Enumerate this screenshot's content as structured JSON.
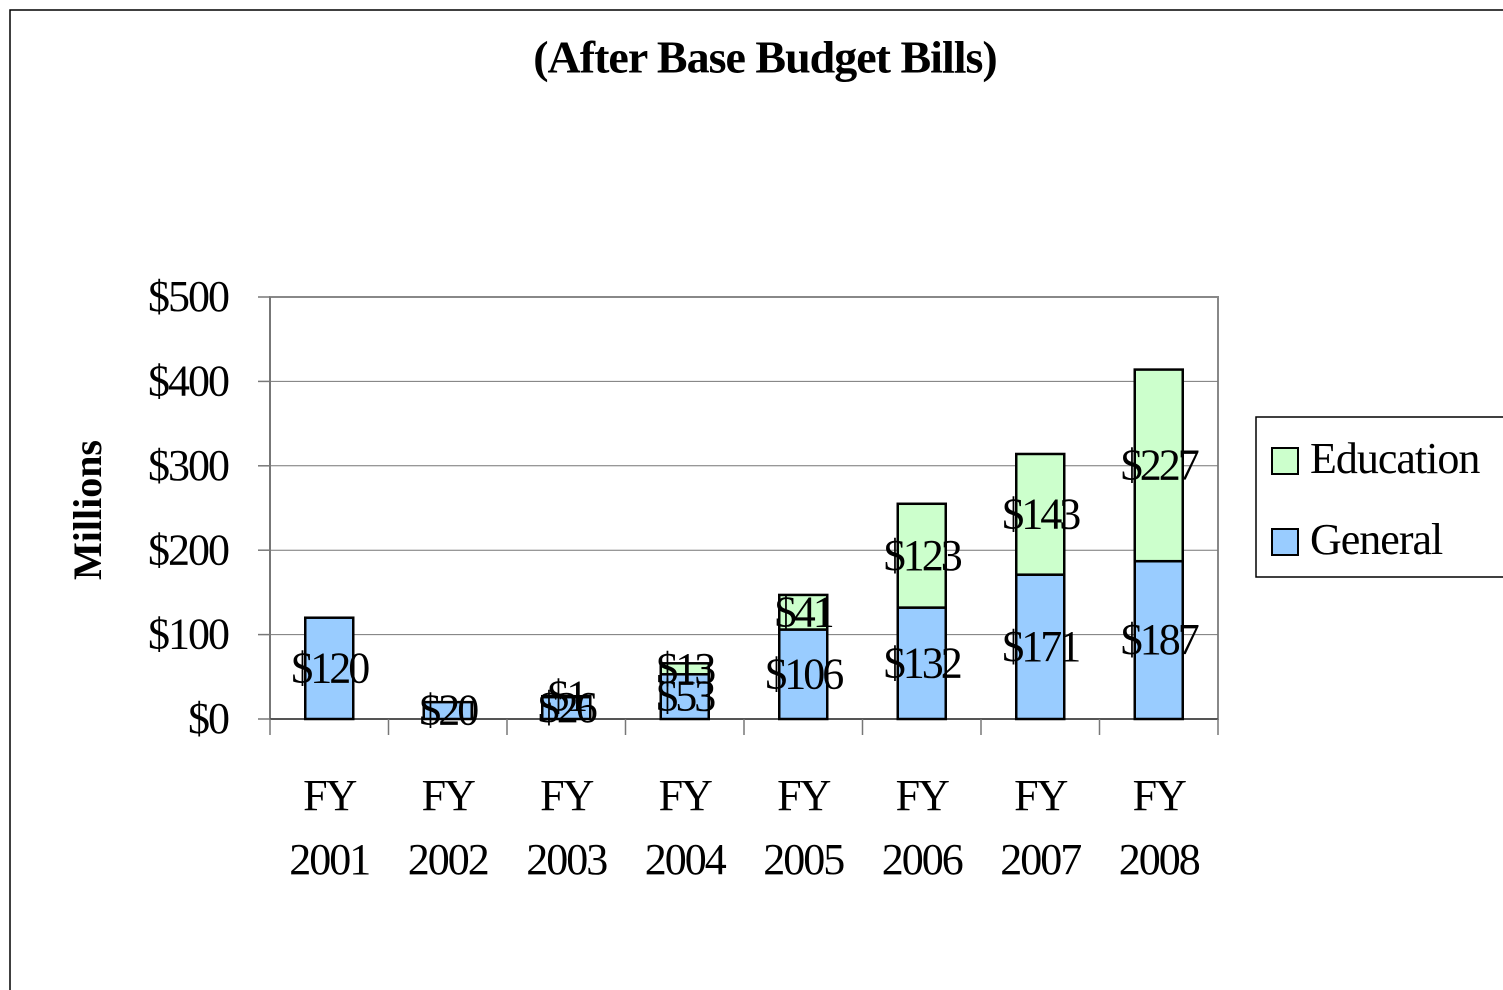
{
  "chart_data": {
    "type": "stacked_bar",
    "title": "(After Base Budget Bills)",
    "y_label": "Millions",
    "categories": [
      "FY 2001",
      "FY 2002",
      "FY 2003",
      "FY 2004",
      "FY 2005",
      "FY 2006",
      "FY 2007",
      "FY 2008"
    ],
    "series": [
      {
        "name": "General",
        "color": "#99ccff",
        "values": [
          120,
          20,
          26,
          53,
          106,
          132,
          171,
          187
        ],
        "value_labels": [
          "$120",
          "$20",
          "$26",
          "$53",
          "$106",
          "$132",
          "$171",
          "$187"
        ]
      },
      {
        "name": "Education",
        "color": "#ccffcc",
        "values": [
          null,
          null,
          1,
          13,
          41,
          123,
          143,
          227
        ],
        "value_labels": [
          null,
          null,
          "$1",
          "$13",
          "$41",
          "$123",
          "$143",
          "$227"
        ]
      }
    ],
    "ylim": [
      0,
      500
    ],
    "yticks": [
      {
        "value": 0,
        "label": "$0"
      },
      {
        "value": 100,
        "label": "$100"
      },
      {
        "value": 200,
        "label": "$200"
      },
      {
        "value": 300,
        "label": "$300"
      },
      {
        "value": 400,
        "label": "$400"
      },
      {
        "value": 500,
        "label": "$500"
      }
    ],
    "grid": true,
    "legend": "right"
  }
}
